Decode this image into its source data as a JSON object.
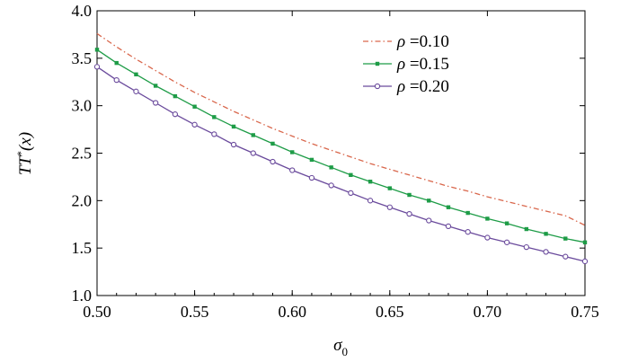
{
  "chart_data": {
    "type": "line",
    "title": "",
    "xlabel": "σ",
    "xlabel_sub": "0",
    "ylabel_main": "TT",
    "ylabel_sup": "*",
    "ylabel_rest": "(x)",
    "xlim": [
      0.5,
      0.75
    ],
    "ylim": [
      1.0,
      4.0
    ],
    "x_ticks": [
      "0.50",
      "0.55",
      "0.60",
      "0.65",
      "0.70",
      "0.75"
    ],
    "y_ticks": [
      "1.0",
      "1.5",
      "2.0",
      "2.5",
      "3.0",
      "3.5",
      "4.0"
    ],
    "grid": false,
    "legend_position": "top-right",
    "x": [
      0.5,
      0.51,
      0.52,
      0.53,
      0.54,
      0.55,
      0.56,
      0.57,
      0.58,
      0.59,
      0.6,
      0.61,
      0.62,
      0.63,
      0.64,
      0.65,
      0.66,
      0.67,
      0.68,
      0.69,
      0.7,
      0.71,
      0.72,
      0.73,
      0.74,
      0.75
    ],
    "series": [
      {
        "name_symbol": "ρ",
        "name_value": " =0.10",
        "color": "#d9674c",
        "style": "dashdot",
        "marker": "none",
        "values": [
          3.76,
          3.62,
          3.49,
          3.37,
          3.25,
          3.14,
          3.04,
          2.94,
          2.85,
          2.76,
          2.68,
          2.6,
          2.53,
          2.46,
          2.39,
          2.33,
          2.27,
          2.21,
          2.15,
          2.1,
          2.04,
          1.99,
          1.94,
          1.89,
          1.84,
          1.74
        ]
      },
      {
        "name_symbol": "ρ",
        "name_value": " =0.15",
        "color": "#1e9c47",
        "style": "solid",
        "marker": "filled-square",
        "values": [
          3.59,
          3.45,
          3.33,
          3.21,
          3.1,
          2.99,
          2.88,
          2.78,
          2.69,
          2.6,
          2.51,
          2.43,
          2.35,
          2.27,
          2.2,
          2.13,
          2.06,
          2.0,
          1.93,
          1.87,
          1.81,
          1.76,
          1.7,
          1.65,
          1.6,
          1.56
        ]
      },
      {
        "name_symbol": "ρ",
        "name_value": " =0.20",
        "color": "#6a4a9c",
        "style": "solid",
        "marker": "open-circle",
        "values": [
          3.41,
          3.27,
          3.15,
          3.03,
          2.91,
          2.8,
          2.7,
          2.59,
          2.5,
          2.41,
          2.32,
          2.24,
          2.16,
          2.08,
          2.0,
          1.93,
          1.86,
          1.79,
          1.73,
          1.67,
          1.61,
          1.56,
          1.51,
          1.46,
          1.41,
          1.36
        ]
      }
    ]
  }
}
